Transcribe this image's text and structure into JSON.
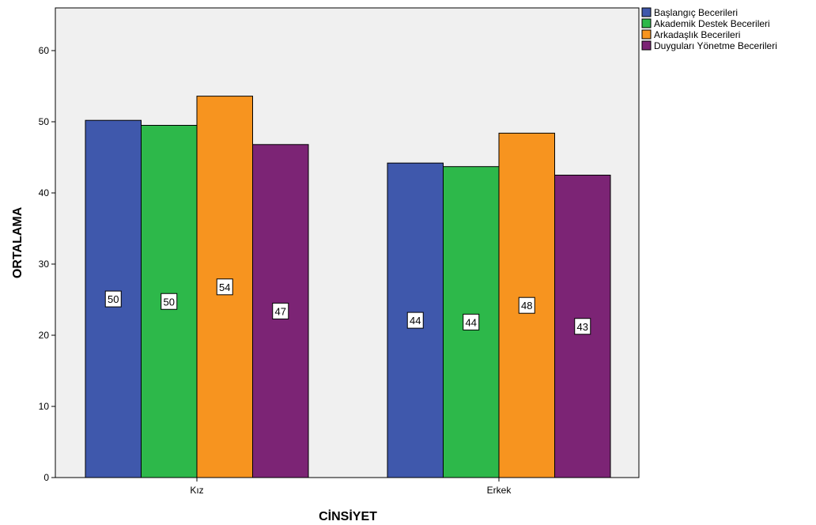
{
  "chart_data": {
    "type": "bar",
    "xlabel": "CİNSİYET",
    "ylabel": "ORTALAMA",
    "categories": [
      "Kız",
      "Erkek"
    ],
    "ylim": [
      0,
      66
    ],
    "yticks": [
      0,
      10,
      20,
      30,
      40,
      50,
      60
    ],
    "grid": false,
    "legend_position": "top-right",
    "series": [
      {
        "name": "Başlangıç Becerileri",
        "color": "#3F58AC",
        "values": [
          50.2,
          44.2
        ],
        "labels": [
          "50",
          "44"
        ]
      },
      {
        "name": "Akademik Destek Becerileri",
        "color": "#2DB84A",
        "values": [
          49.5,
          43.7
        ],
        "labels": [
          "50",
          "44"
        ]
      },
      {
        "name": "Arkadaşlık Becerileri",
        "color": "#F7941F",
        "values": [
          53.6,
          48.4
        ],
        "labels": [
          "54",
          "48"
        ]
      },
      {
        "name": "Duyguları Yönetme Becerileri",
        "color": "#7C2475",
        "values": [
          46.8,
          42.5
        ],
        "labels": [
          "47",
          "43"
        ]
      }
    ]
  }
}
